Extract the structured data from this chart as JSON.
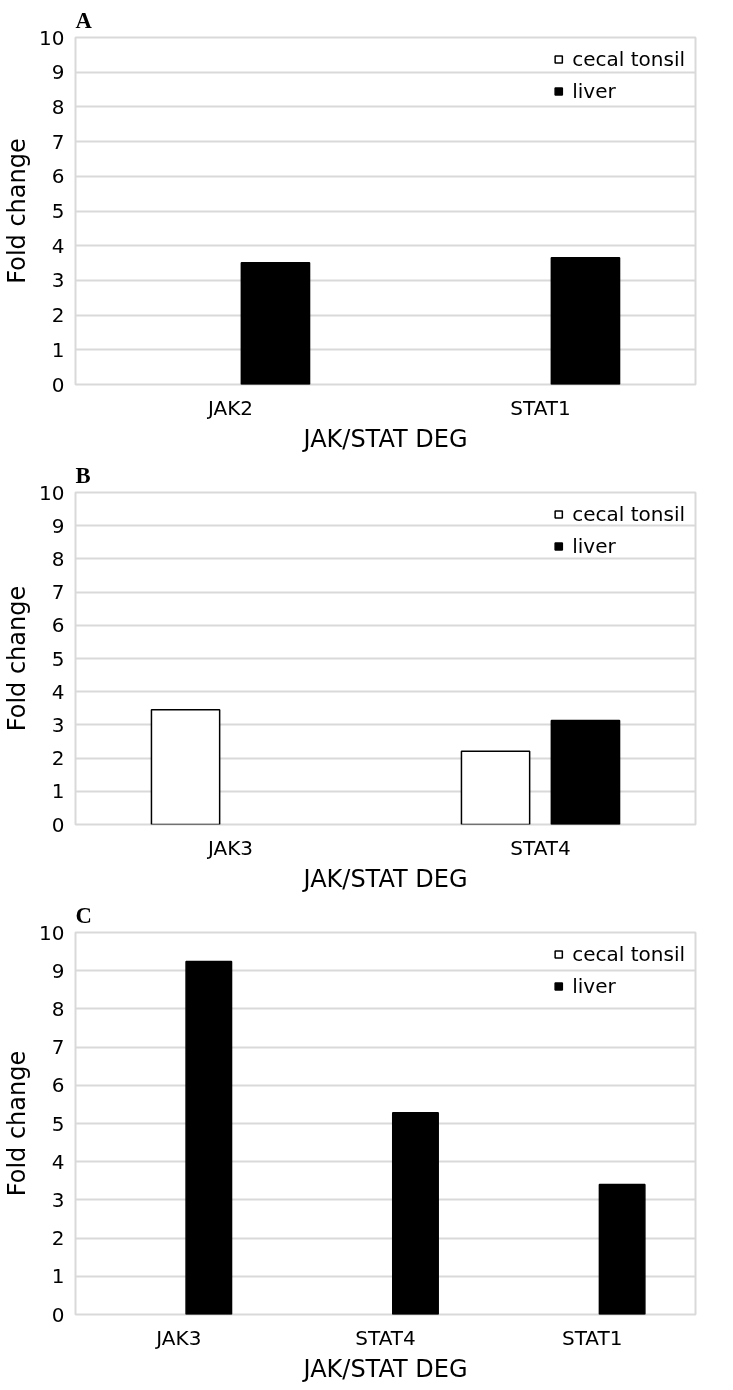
{
  "chart_data": [
    {
      "type": "bar",
      "title": "A",
      "xlabel": "JAK/STAT DEG",
      "ylabel": "Fold change",
      "categories": [
        "JAK2",
        "STAT1"
      ],
      "series": [
        {
          "name": "cecal tonsil",
          "color": "#ffffff",
          "values": [
            null,
            null
          ]
        },
        {
          "name": "liver",
          "color": "#000000",
          "values": [
            3.51,
            3.65
          ]
        }
      ],
      "ylim": [
        0,
        10
      ],
      "yticks": [
        0,
        1,
        2,
        3,
        4,
        5,
        6,
        7,
        8,
        9,
        10
      ],
      "grid": "y",
      "legend": "top right"
    },
    {
      "type": "bar",
      "title": "B",
      "xlabel": "JAK/STAT DEG",
      "ylabel": "Fold change",
      "categories": [
        "JAK3",
        "STAT4"
      ],
      "series": [
        {
          "name": "cecal tonsil",
          "color": "#ffffff",
          "values": [
            3.46,
            2.21
          ]
        },
        {
          "name": "liver",
          "color": "#000000",
          "values": [
            null,
            3.13
          ]
        }
      ],
      "ylim": [
        0,
        10
      ],
      "yticks": [
        0,
        1,
        2,
        3,
        4,
        5,
        6,
        7,
        8,
        9,
        10
      ],
      "grid": "y",
      "legend": "top right"
    },
    {
      "type": "bar",
      "title": "C",
      "xlabel": "JAK/STAT DEG",
      "ylabel": "Fold change",
      "categories": [
        "JAK3",
        "STAT4",
        "STAT1"
      ],
      "series": [
        {
          "name": "cecal tonsil",
          "color": "#ffffff",
          "values": [
            null,
            null,
            null
          ]
        },
        {
          "name": "liver",
          "color": "#000000",
          "values": [
            9.24,
            5.28,
            3.4
          ]
        }
      ],
      "ylim": [
        0,
        10
      ],
      "yticks": [
        0,
        1,
        2,
        3,
        4,
        5,
        6,
        7,
        8,
        9,
        10
      ],
      "grid": "y",
      "legend": "top right"
    }
  ]
}
